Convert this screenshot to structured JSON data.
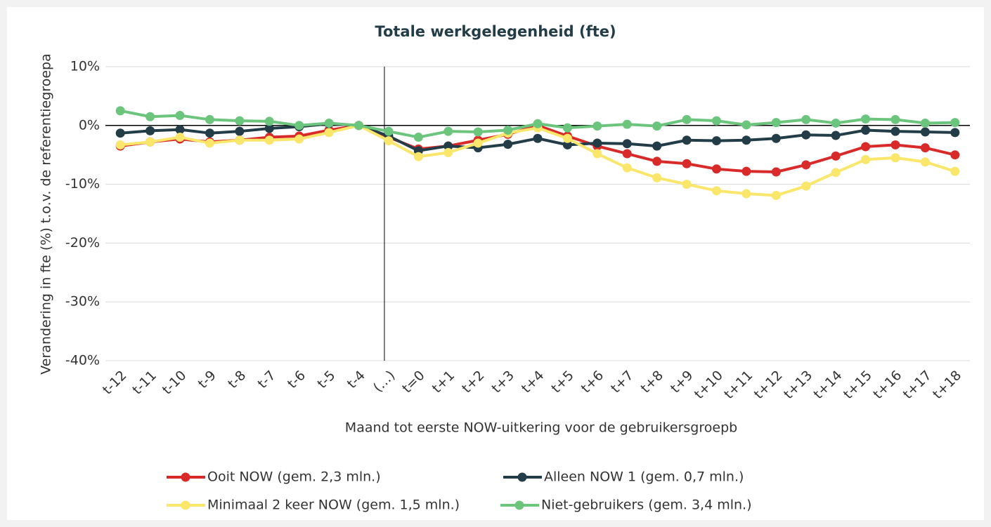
{
  "chart_data": {
    "type": "line",
    "title": "Totale werkgelegenheid (fte)",
    "x_label": "Maand tot eerste NOW-uitkering voor de gebruikersgroepb",
    "y_label": "Verandering in fte (%) t.o.v. de referentiegroepa",
    "categories": [
      "t-12",
      "t-11",
      "t-10",
      "t-9",
      "t-8",
      "t-7",
      "t-6",
      "t-5",
      "t-4",
      "(…)",
      "t=0",
      "t+1",
      "t+2",
      "t+3",
      "t+4",
      "t+5",
      "t+6",
      "t+7",
      "t+8",
      "t+9",
      "t+10",
      "t+11",
      "t+12",
      "t+13",
      "t+14",
      "t+15",
      "t+16",
      "t+17",
      "t+18"
    ],
    "series": [
      {
        "name": "Ooit NOW (gem. 2,3 mln.)",
        "color": "#d92a2a",
        "values": [
          -3.5,
          -2.8,
          -2.3,
          -2.8,
          -2.5,
          -2.0,
          -1.8,
          -0.8,
          0,
          -2.0,
          -4.0,
          -3.5,
          -2.5,
          -1.5,
          0,
          -1.8,
          -3.5,
          -4.8,
          -6.1,
          -6.5,
          -7.4,
          -7.8,
          -7.9,
          -6.7,
          -5.2,
          -3.6,
          -3.3,
          -3.8,
          -5.0
        ]
      },
      {
        "name": "Alleen NOW 1 (gem. 0,7 mln.)",
        "color": "#223d48",
        "values": [
          -1.3,
          -0.9,
          -0.7,
          -1.3,
          -1.0,
          -0.5,
          -0.2,
          0.3,
          0,
          -1.8,
          -4.3,
          -3.5,
          -3.8,
          -3.2,
          -2.2,
          -3.3,
          -3.0,
          -3.1,
          -3.5,
          -2.5,
          -2.6,
          -2.5,
          -2.2,
          -1.6,
          -1.7,
          -0.8,
          -1.0,
          -1.1,
          -1.2
        ]
      },
      {
        "name": "Minimaal 2 keer NOW (gem. 1,5 mln.)",
        "color": "#f9e66a",
        "values": [
          -3.3,
          -2.8,
          -2.0,
          -3.0,
          -2.5,
          -2.5,
          -2.3,
          -1.2,
          0,
          -2.6,
          -5.3,
          -4.6,
          -3.0,
          -1.3,
          -0.4,
          -2.2,
          -4.8,
          -7.2,
          -8.9,
          -10.0,
          -11.1,
          -11.6,
          -11.9,
          -10.3,
          -8.0,
          -5.8,
          -5.5,
          -6.2,
          -7.8
        ]
      },
      {
        "name": "Niet-gebruikers (gem. 3,4 mln.)",
        "color": "#6cc57c",
        "values": [
          2.5,
          1.5,
          1.7,
          1.0,
          0.8,
          0.7,
          0,
          0.4,
          0,
          -1.0,
          -2.0,
          -1.0,
          -1.1,
          -0.8,
          0.3,
          -0.4,
          -0.1,
          0.2,
          -0.1,
          1.0,
          0.8,
          0.1,
          0.5,
          1.0,
          0.4,
          1.1,
          1.0,
          0.4,
          0.5
        ]
      }
    ],
    "ylim": [
      -40,
      10
    ],
    "yticks": [
      {
        "value": -40,
        "label": "-40%"
      },
      {
        "value": -30,
        "label": "-30%"
      },
      {
        "value": -20,
        "label": "-20%"
      },
      {
        "value": -10,
        "label": "-10%"
      },
      {
        "value": 0,
        "label": "0%"
      },
      {
        "value": 10,
        "label": "10%"
      }
    ],
    "grid": true,
    "legend": "bottom"
  }
}
